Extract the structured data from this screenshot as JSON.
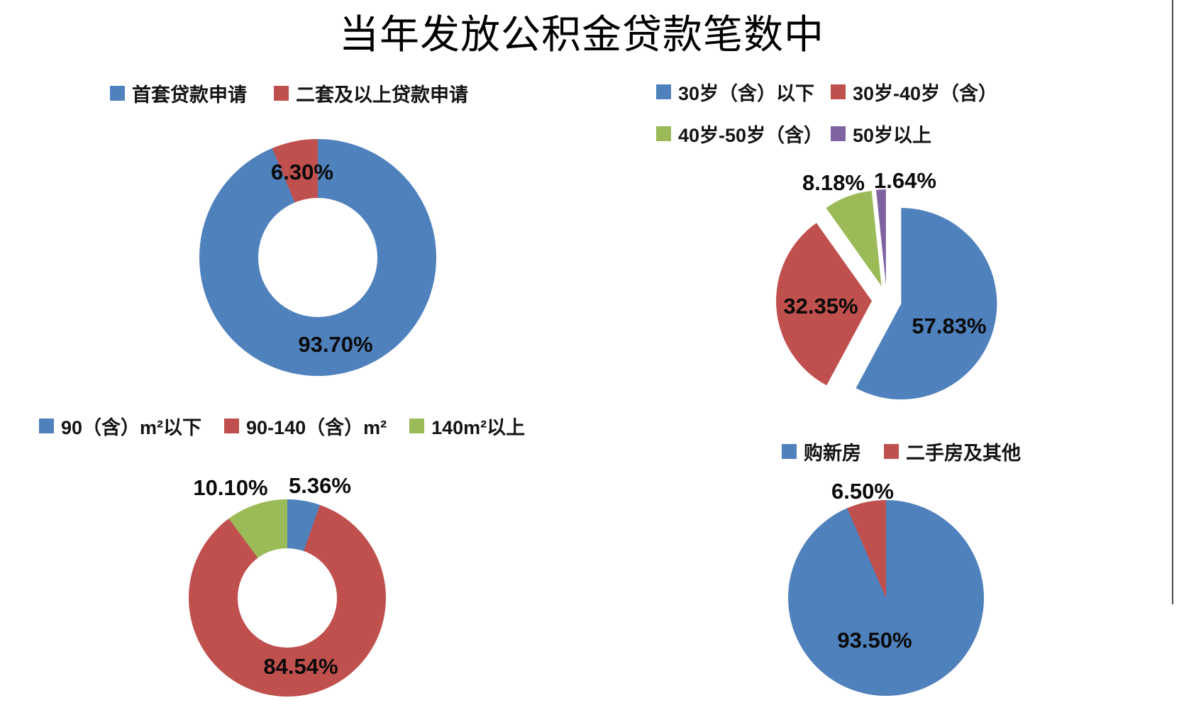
{
  "page_title": "当年发放公积金贷款笔数中",
  "palette": {
    "blue": "#4F81BD",
    "red": "#C0504D",
    "green": "#9BBB59",
    "purple": "#8064A2",
    "label_color": "#0a0a0a",
    "border_color": "#4a4a4a"
  },
  "chart_data": [
    {
      "id": "first-vs-second-home-loans",
      "type": "doughnut",
      "legend_position": "top",
      "categories": [
        "首套贷款申请",
        "二套及以上贷款申请"
      ],
      "values": [
        93.7,
        6.3
      ],
      "colors": [
        "#4F81BD",
        "#C0504D"
      ],
      "data_labels": [
        "93.70%",
        "6.30%"
      ]
    },
    {
      "id": "borrower-age-groups",
      "type": "pie-exploded",
      "legend_position": "top",
      "categories": [
        "30岁（含）以下",
        "30岁-40岁（含）",
        "40岁-50岁（含）",
        "50岁以上"
      ],
      "values": [
        57.83,
        32.35,
        8.18,
        1.64
      ],
      "colors": [
        "#4F81BD",
        "#C0504D",
        "#9BBB59",
        "#8064A2"
      ],
      "data_labels": [
        "57.83%",
        "32.35%",
        "8.18%",
        "1.64%"
      ]
    },
    {
      "id": "floor-area-groups",
      "type": "doughnut",
      "legend_position": "top",
      "categories": [
        "90（含）m²以下",
        "90-140（含）m²",
        "140m²以上"
      ],
      "values": [
        5.36,
        84.54,
        10.1
      ],
      "colors": [
        "#4F81BD",
        "#C0504D",
        "#9BBB59"
      ],
      "data_labels": [
        "5.36%",
        "84.54%",
        "10.10%"
      ]
    },
    {
      "id": "new-vs-secondhand-home",
      "type": "pie",
      "legend_position": "top",
      "categories": [
        "购新房",
        "二手房及其他"
      ],
      "values": [
        93.5,
        6.5
      ],
      "colors": [
        "#4F81BD",
        "#C0504D"
      ],
      "data_labels": [
        "93.50%",
        "6.50%"
      ]
    }
  ]
}
